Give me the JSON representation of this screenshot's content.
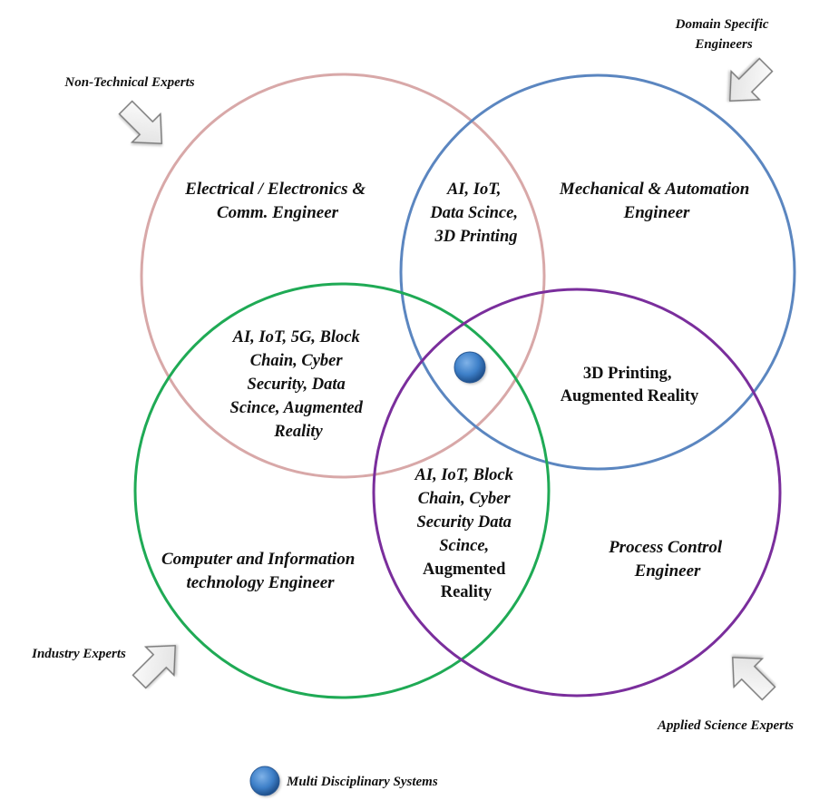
{
  "colors": {
    "circle_electrical": "#d8a8a8",
    "circle_mechanical": "#5b86c0",
    "circle_computer": "#1faa55",
    "circle_process": "#7a2e9c",
    "node_fill": "#3d7fc8",
    "arrow_fill": "#f2f2f2",
    "arrow_stroke": "#7a7a7a"
  },
  "circles": {
    "electrical": [
      "Electrical / Electronics &",
      "Comm. Engineer"
    ],
    "mechanical": [
      "Mechanical & Automation",
      "Engineer"
    ],
    "computer": [
      "Computer and Information",
      "technology Engineer"
    ],
    "process": [
      "Process Control",
      "Engineer"
    ]
  },
  "overlaps": {
    "electrical_mechanical": [
      "AI, IoT,",
      "Data Scince,",
      "3D Printing"
    ],
    "electrical_computer": [
      "AI, IoT, 5G, Block",
      "Chain, Cyber",
      "Security, Data",
      "Scince, Augmented",
      "Reality"
    ],
    "mechanical_process": [
      "3D Printing,",
      "Augmented Reality"
    ],
    "computer_process": [
      "AI, IoT, Block",
      "Chain, Cyber",
      "Security Data",
      "Scince,",
      "Augmented",
      "Reality"
    ]
  },
  "experts": {
    "non_technical": "Non-Technical Experts",
    "domain_specific": [
      "Domain Specific",
      "Engineers"
    ],
    "industry": "Industry Experts",
    "applied_science": "Applied Science Experts"
  },
  "legend": {
    "label": "Multi Disciplinary Systems",
    "icon": "blue-node-icon"
  }
}
